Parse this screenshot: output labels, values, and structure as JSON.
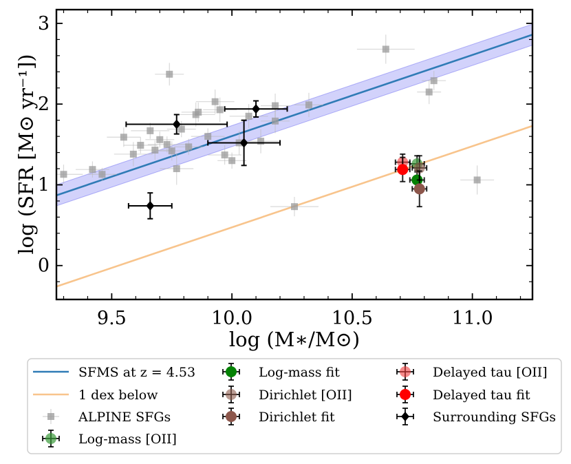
{
  "chart_data": {
    "type": "scatter",
    "title": "",
    "xlabel": "log (M∗/M⊙)",
    "ylabel": "log (SFR [M⊙ yr⁻¹])",
    "xlim": [
      9.27,
      11.25
    ],
    "ylim": [
      -0.42,
      3.17
    ],
    "x_ticks": [
      9.5,
      10.0,
      10.5,
      11.0
    ],
    "x_tick_labels": [
      "9.5",
      "10.0",
      "10.5",
      "11.0"
    ],
    "y_ticks": [
      0,
      1,
      2,
      3
    ],
    "y_tick_labels": [
      "0",
      "1",
      "2",
      "3"
    ],
    "lines": [
      {
        "name": "SFMS at z = 4.53",
        "color": "#2f7bb6",
        "x": [
          9.27,
          11.25
        ],
        "y": [
          0.87,
          2.86
        ],
        "band": 0.13,
        "band_color": "#6b6bf2"
      },
      {
        "name": "1 dex below",
        "color": "#f8c48c",
        "x": [
          9.27,
          11.25
        ],
        "y": [
          -0.26,
          1.73
        ]
      }
    ],
    "series": [
      {
        "name": "ALPINE SFGs",
        "marker": "square",
        "color": "#9a9a9a",
        "points": [
          {
            "x": 9.3,
            "y": 1.13,
            "xerr": 0.08,
            "yerr": 0.12
          },
          {
            "x": 9.42,
            "y": 1.19,
            "xerr": 0.07,
            "yerr": 0.1
          },
          {
            "x": 9.46,
            "y": 1.13,
            "xerr": 0.06,
            "yerr": 0.08
          },
          {
            "x": 9.55,
            "y": 1.59,
            "xerr": 0.07,
            "yerr": 0.12
          },
          {
            "x": 9.59,
            "y": 1.38,
            "xerr": 0.08,
            "yerr": 0.15
          },
          {
            "x": 9.62,
            "y": 1.49,
            "xerr": 0.07,
            "yerr": 0.1
          },
          {
            "x": 9.66,
            "y": 1.67,
            "xerr": 0.08,
            "yerr": 0.1
          },
          {
            "x": 9.68,
            "y": 1.43,
            "xerr": 0.07,
            "yerr": 0.12
          },
          {
            "x": 9.7,
            "y": 1.56,
            "xerr": 0.06,
            "yerr": 0.1
          },
          {
            "x": 9.73,
            "y": 1.5,
            "xerr": 0.08,
            "yerr": 0.1
          },
          {
            "x": 9.74,
            "y": 2.37,
            "xerr": 0.06,
            "yerr": 0.14
          },
          {
            "x": 9.75,
            "y": 1.42,
            "xerr": 0.07,
            "yerr": 0.12
          },
          {
            "x": 9.77,
            "y": 1.2,
            "xerr": 0.07,
            "yerr": 0.2
          },
          {
            "x": 9.79,
            "y": 1.69,
            "xerr": 0.06,
            "yerr": 0.1
          },
          {
            "x": 9.82,
            "y": 1.47,
            "xerr": 0.06,
            "yerr": 0.1
          },
          {
            "x": 9.85,
            "y": 1.87,
            "xerr": 0.08,
            "yerr": 0.15
          },
          {
            "x": 9.86,
            "y": 1.9,
            "xerr": 0.07,
            "yerr": 0.12
          },
          {
            "x": 9.9,
            "y": 1.6,
            "xerr": 0.07,
            "yerr": 0.1
          },
          {
            "x": 9.93,
            "y": 2.03,
            "xerr": 0.08,
            "yerr": 0.15
          },
          {
            "x": 9.95,
            "y": 1.93,
            "xerr": 0.07,
            "yerr": 0.15
          },
          {
            "x": 9.97,
            "y": 1.37,
            "xerr": 0.07,
            "yerr": 0.12
          },
          {
            "x": 10.0,
            "y": 1.3,
            "xerr": 0.06,
            "yerr": 0.1
          },
          {
            "x": 10.03,
            "y": 1.52,
            "xerr": 0.08,
            "yerr": 0.15
          },
          {
            "x": 10.07,
            "y": 1.85,
            "xerr": 0.08,
            "yerr": 0.15
          },
          {
            "x": 10.12,
            "y": 1.54,
            "xerr": 0.08,
            "yerr": 0.15
          },
          {
            "x": 10.18,
            "y": 1.79,
            "xerr": 0.06,
            "yerr": 0.15
          },
          {
            "x": 10.18,
            "y": 1.98,
            "xerr": 0.06,
            "yerr": 0.15
          },
          {
            "x": 10.26,
            "y": 0.73,
            "xerr": 0.1,
            "yerr": 0.12
          },
          {
            "x": 10.32,
            "y": 1.99,
            "xerr": 0.06,
            "yerr": 0.15
          },
          {
            "x": 10.64,
            "y": 2.68,
            "xerr": 0.12,
            "yerr": 0.18
          },
          {
            "x": 10.82,
            "y": 2.15,
            "xerr": 0.05,
            "yerr": 0.15
          },
          {
            "x": 10.84,
            "y": 2.29,
            "xerr": 0.05,
            "yerr": 0.12
          },
          {
            "x": 11.02,
            "y": 1.06,
            "xerr": 0.07,
            "yerr": 0.18
          }
        ]
      },
      {
        "name": "Log-mass [OII]",
        "marker": "circle",
        "color": "#3a9a3a",
        "alpha": 0.7,
        "points": [
          {
            "x": 10.77,
            "y": 1.26,
            "xerr": 0.03,
            "yerr": 0.1
          }
        ]
      },
      {
        "name": "Log-mass fit",
        "marker": "circle",
        "color": "#058205",
        "alpha": 1.0,
        "points": [
          {
            "x": 10.77,
            "y": 1.06,
            "xerr": 0.03,
            "yerr": 0.12
          }
        ]
      },
      {
        "name": "Dirichlet [OII]",
        "marker": "circle",
        "color": "#8c5a4b",
        "alpha": 0.6,
        "points": [
          {
            "x": 10.78,
            "y": 1.21,
            "xerr": 0.03,
            "yerr": 0.15
          }
        ]
      },
      {
        "name": "Dirichlet fit",
        "marker": "circle",
        "color": "#8c564b",
        "alpha": 1.0,
        "points": [
          {
            "x": 10.78,
            "y": 0.95,
            "xerr": 0.03,
            "yerr": 0.22
          }
        ]
      },
      {
        "name": "Delayed tau [OII]",
        "marker": "circle",
        "color": "#f03c3c",
        "alpha": 0.6,
        "points": [
          {
            "x": 10.71,
            "y": 1.28,
            "xerr": 0.03,
            "yerr": 0.1
          }
        ]
      },
      {
        "name": "Delayed tau fit",
        "marker": "circle",
        "color": "#ff0000",
        "alpha": 1.0,
        "points": [
          {
            "x": 10.71,
            "y": 1.19,
            "xerr": 0.03,
            "yerr": 0.15
          }
        ]
      },
      {
        "name": "Surrounding SFGs",
        "marker": "diamond",
        "color": "#000000",
        "points": [
          {
            "x": 9.66,
            "y": 0.74,
            "xerr": 0.09,
            "yerr": 0.16
          },
          {
            "x": 9.77,
            "y": 1.75,
            "xerr": 0.21,
            "yerr": 0.12
          },
          {
            "x": 10.05,
            "y": 1.52,
            "xerr": 0.15,
            "yerr": 0.28
          },
          {
            "x": 10.1,
            "y": 1.94,
            "xerr": 0.13,
            "yerr": 0.1
          }
        ]
      }
    ],
    "legend": {
      "position": "below",
      "entries": [
        {
          "label": "SFMS at z = 4.53",
          "kind": "line",
          "color": "#2f7bb6"
        },
        {
          "label": "1 dex below",
          "kind": "line",
          "color": "#f8c48c"
        },
        {
          "label": "ALPINE SFGs",
          "kind": "square",
          "color": "#9a9a9a"
        },
        {
          "label": "Log-mass [OII]",
          "kind": "circle",
          "color": "#3a9a3a",
          "alpha": 0.7
        },
        {
          "label": "Log-mass fit",
          "kind": "circle",
          "color": "#058205",
          "alpha": 1.0
        },
        {
          "label": "Dirichlet [OII]",
          "kind": "circle",
          "color": "#8c5a4b",
          "alpha": 0.6
        },
        {
          "label": "Dirichlet fit",
          "kind": "circle",
          "color": "#8c564b",
          "alpha": 1.0
        },
        {
          "label": "Delayed tau [OII]",
          "kind": "circle",
          "color": "#f03c3c",
          "alpha": 0.6
        },
        {
          "label": "Delayed tau fit",
          "kind": "circle",
          "color": "#ff0000",
          "alpha": 1.0
        },
        {
          "label": "Surrounding SFGs",
          "kind": "diamond",
          "color": "#000000"
        }
      ]
    }
  }
}
